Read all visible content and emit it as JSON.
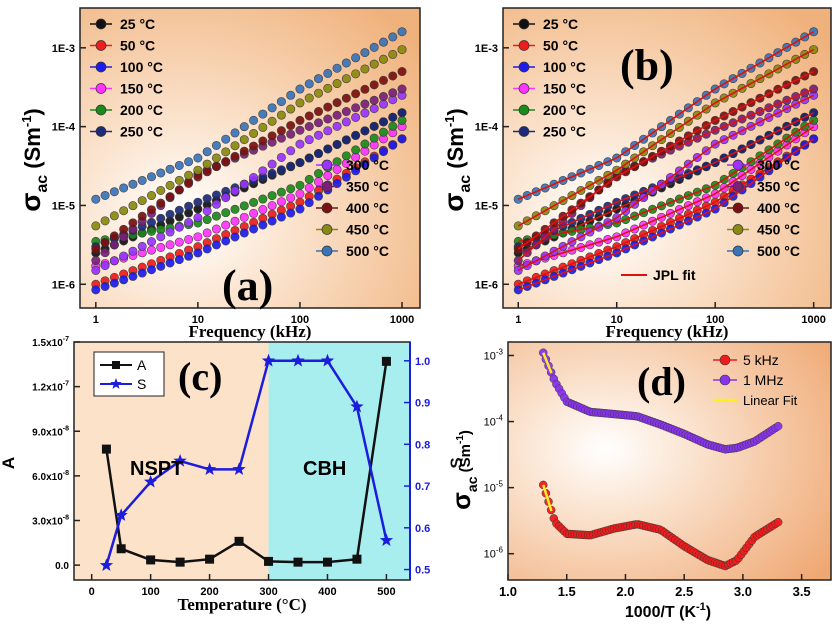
{
  "colors": {
    "s25": "#111111",
    "s50": "#ee1c1c",
    "s100": "#1c1cee",
    "s150": "#ff33ff",
    "s200": "#1a8a1a",
    "s250": "#1c2a7a",
    "s300": "#9a33ff",
    "s350": "#7a1f7a",
    "s400": "#7a1010",
    "s450": "#8a8a10",
    "s500": "#3a74b8",
    "jpl": "#e01010",
    "A": "#111111",
    "S": "#1c1cdd",
    "cbh_bg": "#a8eeee",
    "d5k": "#ee1c1c",
    "d1M": "#8a33ee",
    "linfit": "#ffee22"
  },
  "chart_data": [
    {
      "id": "a",
      "type": "scatter",
      "panel_label": "(a)",
      "xlabel": "Frequency (kHz)",
      "ylabel_main": "σ",
      "ylabel_sub": "ac",
      "ylabel_unit": " (Sm",
      "ylabel_exp": "-1",
      "ylabel_close": ")",
      "xscale": "log",
      "yscale": "log",
      "xlim": [
        0.7,
        1500
      ],
      "ylim": [
        5e-07,
        0.0032
      ],
      "xticks": [
        {
          "v": 1,
          "label": "1"
        },
        {
          "v": 10,
          "label": "10"
        },
        {
          "v": 100,
          "label": "100"
        },
        {
          "v": 1000,
          "label": "1000"
        }
      ],
      "yticks": [
        {
          "v": 1e-06,
          "label": "1E-6"
        },
        {
          "v": 1e-05,
          "label": "1E-5"
        },
        {
          "v": 0.0001,
          "label": "1E-4"
        },
        {
          "v": 0.001,
          "label": "1E-3"
        }
      ],
      "legend_placement": [
        "top-left",
        "bottom-right"
      ],
      "series": [
        {
          "name": "25 °C",
          "color_key": "s25",
          "x": [
            1,
            10,
            100,
            1000
          ],
          "y": [
            2.5e-06,
            9e-06,
            3.5e-05,
            0.00015
          ]
        },
        {
          "name": "50 °C",
          "color_key": "s50",
          "x": [
            1,
            10,
            100,
            1000
          ],
          "y": [
            1e-06,
            3e-06,
            1.1e-05,
            7e-05
          ]
        },
        {
          "name": "100 °C",
          "color_key": "s100",
          "x": [
            1,
            10,
            100,
            1000
          ],
          "y": [
            8.5e-07,
            2.5e-06,
            9e-06,
            7e-05
          ]
        },
        {
          "name": "150 °C",
          "color_key": "s150",
          "x": [
            1,
            10,
            100,
            1000
          ],
          "y": [
            1.7e-06,
            4e-06,
            1.4e-05,
            0.0001
          ]
        },
        {
          "name": "200 °C",
          "color_key": "s200",
          "x": [
            1,
            10,
            100,
            1000
          ],
          "y": [
            3.5e-06,
            6e-06,
            1.8e-05,
            0.00012
          ]
        },
        {
          "name": "250 °C",
          "color_key": "s250",
          "x": [
            1,
            10,
            100,
            1000
          ],
          "y": [
            3e-06,
            1.1e-05,
            3.5e-05,
            0.00015
          ]
        },
        {
          "name": "300 °C",
          "color_key": "s300",
          "x": [
            1,
            10,
            100,
            1000
          ],
          "y": [
            1.5e-06,
            7e-06,
            6e-05,
            0.00025
          ]
        },
        {
          "name": "350 °C",
          "color_key": "s350",
          "x": [
            1,
            10,
            100,
            1000
          ],
          "y": [
            2e-06,
            2.5e-05,
            9e-05,
            0.0003
          ]
        },
        {
          "name": "400 °C",
          "color_key": "s400",
          "x": [
            1,
            10,
            100,
            1000
          ],
          "y": [
            2.8e-06,
            2.3e-05,
            0.00012,
            0.0005
          ]
        },
        {
          "name": "450 °C",
          "color_key": "s450",
          "x": [
            1,
            10,
            100,
            1000
          ],
          "y": [
            5.5e-06,
            2.8e-05,
            0.0002,
            0.00095
          ]
        },
        {
          "name": "500 °C",
          "color_key": "s500",
          "x": [
            1,
            10,
            100,
            1000
          ],
          "y": [
            1.2e-05,
            4e-05,
            0.0003,
            0.0016
          ]
        }
      ]
    },
    {
      "id": "b",
      "type": "scatter",
      "panel_label": "(b)",
      "xlabel": "Frequency (kHz)",
      "ylabel_main": "σ",
      "ylabel_sub": "ac",
      "ylabel_unit": " (Sm",
      "ylabel_exp": "-1",
      "ylabel_close": ")",
      "xscale": "log",
      "yscale": "log",
      "xlim": [
        0.7,
        1500
      ],
      "ylim": [
        5e-07,
        0.0032
      ],
      "xticks": [
        {
          "v": 1,
          "label": "1"
        },
        {
          "v": 10,
          "label": "10"
        },
        {
          "v": 100,
          "label": "100"
        },
        {
          "v": 1000,
          "label": "1000"
        }
      ],
      "yticks": [
        {
          "v": 1e-06,
          "label": "1E-6"
        },
        {
          "v": 1e-05,
          "label": "1E-5"
        },
        {
          "v": 0.0001,
          "label": "1E-4"
        },
        {
          "v": 0.001,
          "label": "1E-3"
        }
      ],
      "fit_label": "JPL fit",
      "legend_placement": [
        "top-left",
        "bottom-right"
      ],
      "series": [
        {
          "name": "25 °C",
          "color_key": "s25",
          "x": [
            1,
            10,
            100,
            1000
          ],
          "y": [
            2.5e-06,
            9e-06,
            3.5e-05,
            0.00015
          ]
        },
        {
          "name": "50 °C",
          "color_key": "s50",
          "x": [
            1,
            10,
            100,
            1000
          ],
          "y": [
            1e-06,
            3e-06,
            1.1e-05,
            7e-05
          ]
        },
        {
          "name": "100 °C",
          "color_key": "s100",
          "x": [
            1,
            10,
            100,
            1000
          ],
          "y": [
            8.5e-07,
            2.5e-06,
            9e-06,
            7e-05
          ]
        },
        {
          "name": "150 °C",
          "color_key": "s150",
          "x": [
            1,
            10,
            100,
            1000
          ],
          "y": [
            1.7e-06,
            4e-06,
            1.4e-05,
            0.0001
          ]
        },
        {
          "name": "200 °C",
          "color_key": "s200",
          "x": [
            1,
            10,
            100,
            1000
          ],
          "y": [
            3.5e-06,
            6e-06,
            1.8e-05,
            0.00012
          ]
        },
        {
          "name": "250 °C",
          "color_key": "s250",
          "x": [
            1,
            10,
            100,
            1000
          ],
          "y": [
            3e-06,
            1.1e-05,
            3.5e-05,
            0.00015
          ]
        },
        {
          "name": "300 °C",
          "color_key": "s300",
          "x": [
            1,
            10,
            100,
            1000
          ],
          "y": [
            1.5e-06,
            7e-06,
            6e-05,
            0.00025
          ]
        },
        {
          "name": "350 °C",
          "color_key": "s350",
          "x": [
            1,
            10,
            100,
            1000
          ],
          "y": [
            2e-06,
            2.5e-05,
            9e-05,
            0.0003
          ]
        },
        {
          "name": "400 °C",
          "color_key": "s400",
          "x": [
            1,
            10,
            100,
            1000
          ],
          "y": [
            2.8e-06,
            2.3e-05,
            0.00012,
            0.0005
          ]
        },
        {
          "name": "450 °C",
          "color_key": "s450",
          "x": [
            1,
            10,
            100,
            1000
          ],
          "y": [
            5.5e-06,
            2.8e-05,
            0.0002,
            0.00095
          ]
        },
        {
          "name": "500 °C",
          "color_key": "s500",
          "x": [
            1,
            10,
            100,
            1000
          ],
          "y": [
            1.2e-05,
            4e-05,
            0.0003,
            0.0016
          ]
        }
      ]
    },
    {
      "id": "c",
      "type": "line",
      "panel_label": "(c)",
      "xlabel": "Temperature (°C)",
      "ylabel_left": "A",
      "ylabel_right": "S",
      "xlim": [
        -30,
        540
      ],
      "ylim_left": [
        -1e-08,
        1.5e-07
      ],
      "ylim_right": [
        0.475,
        1.045
      ],
      "xticks": [
        {
          "v": 0,
          "label": "0"
        },
        {
          "v": 100,
          "label": "100"
        },
        {
          "v": 200,
          "label": "200"
        },
        {
          "v": 300,
          "label": "300"
        },
        {
          "v": 400,
          "label": "400"
        },
        {
          "v": 500,
          "label": "500"
        }
      ],
      "yticks_left": [
        {
          "v": 0,
          "label": "0.0"
        },
        {
          "v": 3e-08,
          "label": "3.0x10"
        },
        {
          "v": 6e-08,
          "label": "6.0x10"
        },
        {
          "v": 9e-08,
          "label": "9.0x10"
        },
        {
          "v": 1.2e-07,
          "label": "1.2x10"
        },
        {
          "v": 1.5e-07,
          "label": "1.5x10"
        }
      ],
      "ytick_exp": "-7",
      "ytick_exp8": "-8",
      "yticks_right": [
        {
          "v": 0.5,
          "label": "0.5"
        },
        {
          "v": 0.6,
          "label": "0.6"
        },
        {
          "v": 0.7,
          "label": "0.7"
        },
        {
          "v": 0.8,
          "label": "0.8"
        },
        {
          "v": 0.9,
          "label": "0.9"
        },
        {
          "v": 1.0,
          "label": "1.0"
        }
      ],
      "regions": [
        {
          "label": "NSPT",
          "x_from": -30,
          "x_to": 300
        },
        {
          "label": "CBH",
          "x_from": 300,
          "x_to": 500
        }
      ],
      "legend_placement": "top-left",
      "series": [
        {
          "name": "A",
          "axis": "left",
          "x": [
            25,
            50,
            100,
            150,
            200,
            250,
            300,
            350,
            400,
            450,
            500
          ],
          "y": [
            7.8e-08,
            1.1e-08,
            3.5e-09,
            2e-09,
            4e-09,
            1.6e-08,
            2.5e-09,
            2e-09,
            2e-09,
            4e-09,
            1.37e-07
          ]
        },
        {
          "name": "S",
          "axis": "right",
          "x": [
            25,
            50,
            100,
            150,
            200,
            250,
            300,
            350,
            400,
            450,
            500
          ],
          "y": [
            0.51,
            0.63,
            0.71,
            0.76,
            0.74,
            0.74,
            1.0,
            1.0,
            1.0,
            0.89,
            0.57
          ]
        }
      ]
    },
    {
      "id": "d",
      "type": "scatter",
      "panel_label": "(d)",
      "xlabel": "1000/T (K",
      "xlabel_exp": "-1",
      "xlabel_close": ")",
      "ylabel_main": "σ",
      "ylabel_sub": "ac",
      "ylabel_unit": " (Sm",
      "ylabel_exp": "-1",
      "ylabel_close": ")",
      "yscale": "log",
      "xlim": [
        1.0,
        3.75
      ],
      "ylim": [
        4e-07,
        0.0016
      ],
      "xticks": [
        {
          "v": 1.0,
          "label": "1.0"
        },
        {
          "v": 1.5,
          "label": "1.5"
        },
        {
          "v": 2.0,
          "label": "2.0"
        },
        {
          "v": 2.5,
          "label": "2.5"
        },
        {
          "v": 3.0,
          "label": "3.0"
        },
        {
          "v": 3.5,
          "label": "3.5"
        }
      ],
      "yticks": [
        {
          "v": 1e-06,
          "label": "10",
          "exp": "-6"
        },
        {
          "v": 1e-05,
          "label": "10",
          "exp": "-5"
        },
        {
          "v": 0.0001,
          "label": "10",
          "exp": "-4"
        },
        {
          "v": 0.001,
          "label": "10",
          "exp": "-3"
        }
      ],
      "fit_label": "Linear Fit",
      "legend_placement": "top-right",
      "series": [
        {
          "name": "5 kHz",
          "color_key": "d5k",
          "x": [
            1.3,
            1.4,
            1.5,
            1.7,
            1.9,
            2.1,
            2.3,
            2.5,
            2.7,
            2.85,
            2.95,
            3.1,
            3.3
          ],
          "y": [
            1.1e-05,
            3e-06,
            2e-06,
            1.9e-06,
            2.4e-06,
            2.8e-06,
            2.3e-06,
            1.3e-06,
            8e-07,
            6.5e-07,
            8e-07,
            1.8e-06,
            3e-06
          ]
        },
        {
          "name": "1 MHz",
          "color_key": "d1M",
          "x": [
            1.3,
            1.4,
            1.5,
            1.7,
            1.9,
            2.1,
            2.3,
            2.5,
            2.7,
            2.85,
            2.95,
            3.1,
            3.3
          ],
          "y": [
            0.0011,
            0.0004,
            0.0002,
            0.00014,
            0.00013,
            0.00012,
            9e-05,
            6.5e-05,
            4.5e-05,
            3.8e-05,
            4e-05,
            5e-05,
            8.5e-05
          ]
        }
      ]
    }
  ]
}
